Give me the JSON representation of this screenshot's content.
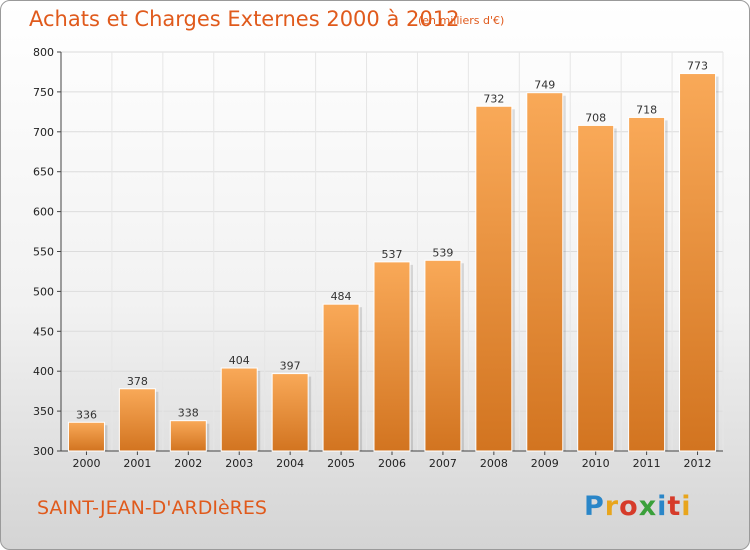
{
  "title": "Achats et Charges Externes 2000 à 2012",
  "subtitle": "(en milliers d'€)",
  "town": "SAINT-JEAN-D'ARDIèRES",
  "logo": {
    "letters": [
      "P",
      "r",
      "o",
      "x",
      "i",
      "t",
      "i"
    ],
    "colors": [
      "#2a86c8",
      "#e8a51c",
      "#d63b2a",
      "#3aa03a",
      "#2a86c8",
      "#d63b2a",
      "#e8a51c"
    ]
  },
  "colors": {
    "bar_top": "#f9a958",
    "bar_bottom": "#d27420",
    "accent": "#e05a1c"
  },
  "chart_data": {
    "type": "bar",
    "categories": [
      "2000",
      "2001",
      "2002",
      "2003",
      "2004",
      "2005",
      "2006",
      "2007",
      "2008",
      "2009",
      "2010",
      "2011",
      "2012"
    ],
    "values": [
      336,
      378,
      338,
      404,
      397,
      484,
      537,
      539,
      732,
      749,
      708,
      718,
      773
    ],
    "ylim": [
      300,
      800
    ],
    "yticks": [
      300,
      350,
      400,
      450,
      500,
      550,
      600,
      650,
      700,
      750,
      800
    ],
    "grid": true,
    "data_labels": true
  }
}
